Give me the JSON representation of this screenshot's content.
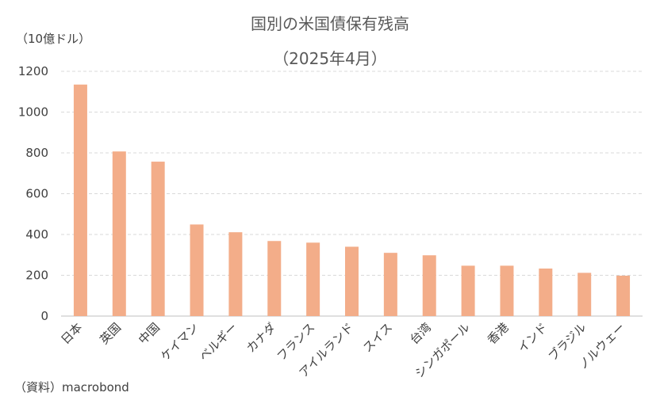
{
  "title_line1": "国別の米国債保有残高",
  "title_line2": "（2025年4月）",
  "unit_label": "（10億ドル）",
  "source": "（資料）macrobond",
  "colors": {
    "bar": "#F3AD89",
    "grid": "#D9D9D9",
    "axis": "#BFBFBF"
  },
  "chart_data": {
    "type": "bar",
    "title": "国別の米国債保有残高（2025年4月）",
    "ylabel": "（10億ドル）",
    "xlabel": "",
    "ylim": [
      0,
      1200
    ],
    "yticks": [
      0,
      200,
      400,
      600,
      800,
      1000,
      1200
    ],
    "grid": true,
    "categories": [
      "日本",
      "英国",
      "中国",
      "ケイマン",
      "ベルギー",
      "カナダ",
      "フランス",
      "アイルランド",
      "スイス",
      "台湾",
      "シンガポール",
      "香港",
      "インド",
      "ブラジル",
      "ノルウェー"
    ],
    "values": [
      1135,
      807,
      757,
      449,
      411,
      368,
      360,
      340,
      310,
      298,
      247,
      247,
      233,
      212,
      198
    ]
  }
}
